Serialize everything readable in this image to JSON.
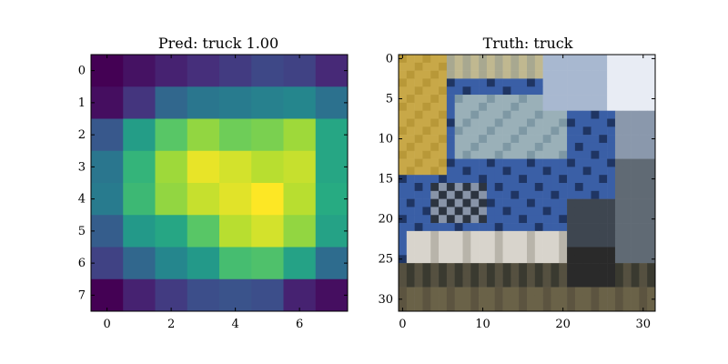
{
  "chart_data": [
    {
      "type": "heatmap",
      "title": "Pred: truck 1.00",
      "colormap": "viridis",
      "xticks": [
        0,
        2,
        4,
        6
      ],
      "yticks": [
        0,
        1,
        2,
        3,
        4,
        5,
        6,
        7
      ],
      "xlim": [
        -0.5,
        7.5
      ],
      "ylim": [
        7.5,
        -0.5
      ],
      "values": [
        [
          0.0,
          0.05,
          0.1,
          0.14,
          0.18,
          0.22,
          0.2,
          0.12
        ],
        [
          0.04,
          0.16,
          0.34,
          0.4,
          0.42,
          0.44,
          0.46,
          0.38
        ],
        [
          0.28,
          0.56,
          0.74,
          0.84,
          0.78,
          0.8,
          0.86,
          0.6
        ],
        [
          0.4,
          0.66,
          0.86,
          0.97,
          0.94,
          0.9,
          0.92,
          0.6
        ],
        [
          0.42,
          0.68,
          0.84,
          0.92,
          0.96,
          1.0,
          0.9,
          0.62
        ],
        [
          0.3,
          0.54,
          0.6,
          0.74,
          0.9,
          0.94,
          0.84,
          0.58
        ],
        [
          0.2,
          0.34,
          0.46,
          0.54,
          0.7,
          0.72,
          0.58,
          0.36
        ],
        [
          0.0,
          0.1,
          0.18,
          0.24,
          0.26,
          0.24,
          0.1,
          0.04
        ]
      ]
    },
    {
      "type": "image",
      "title": "Truth: truck",
      "xticks": [
        0,
        10,
        20,
        30
      ],
      "yticks": [
        0,
        5,
        10,
        15,
        20,
        25,
        30
      ],
      "xlim": [
        -0.5,
        31.5
      ],
      "ylim": [
        31.5,
        -0.5
      ],
      "colors": {
        "sky": "#e8ecf4",
        "tree_yellow": "#c8a848",
        "truck_blue": "#3a5fa6",
        "truck_blue_dark": "#1f3563",
        "windshield": "#9ab0b8",
        "bumper": "#d8d4cc",
        "ground": "#6a6248",
        "tire": "#2a2a2a"
      }
    }
  ]
}
